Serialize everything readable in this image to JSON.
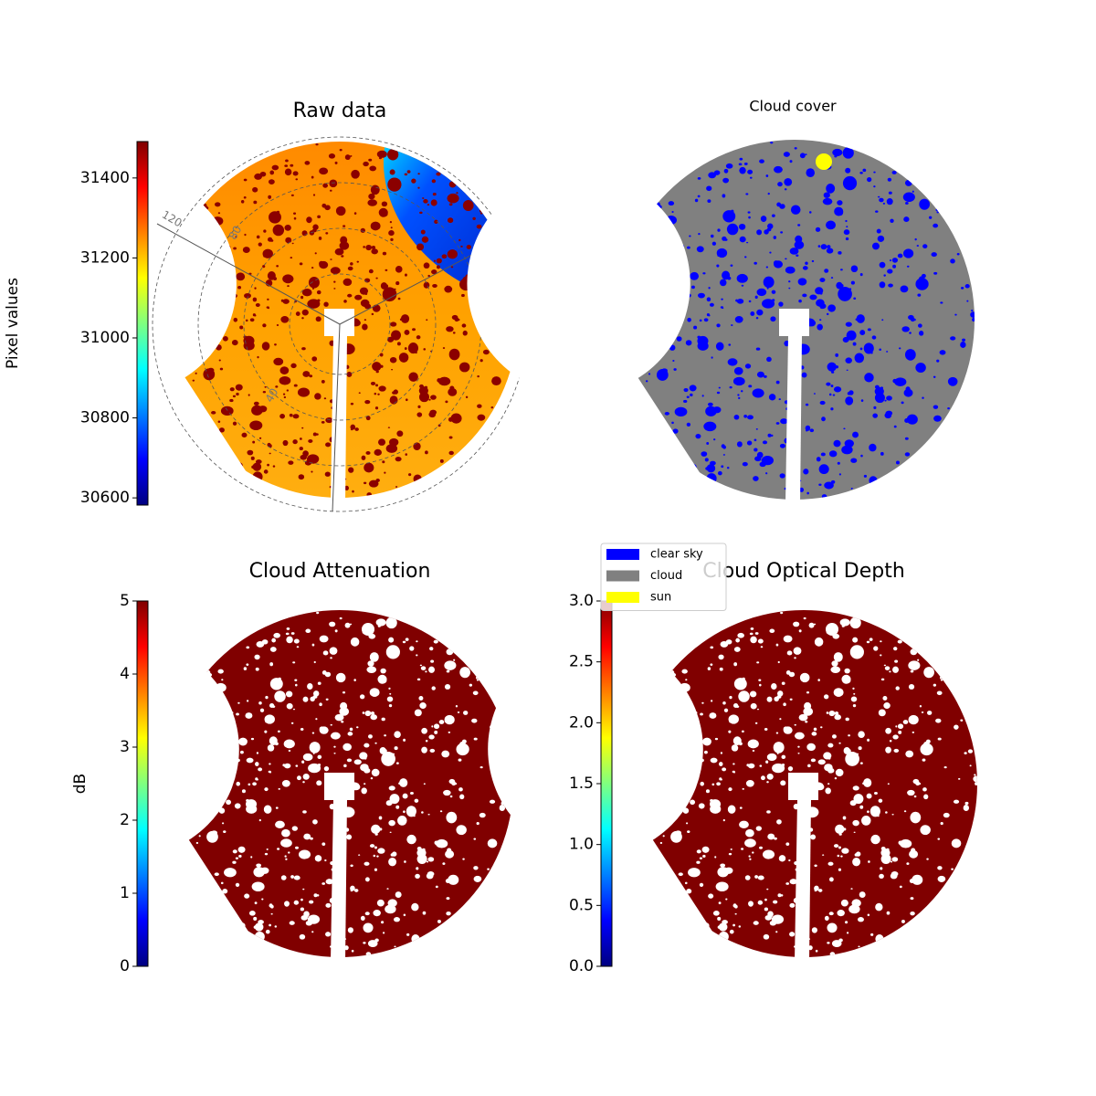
{
  "chart_data": [
    {
      "type": "image",
      "title": "Raw data",
      "colormap": "jet",
      "colorbar_label": "Pixel values",
      "ylim": [
        30582,
        31491
      ],
      "yticks": [
        30600,
        30800,
        31000,
        31200,
        31400
      ],
      "polar_labels": [
        "120",
        "80",
        "40"
      ]
    },
    {
      "type": "classification",
      "title": "Cloud cover",
      "legend": [
        {
          "name": "clear sky",
          "color": "#0000ff"
        },
        {
          "name": "cloud",
          "color": "#808080"
        },
        {
          "name": "sun",
          "color": "#ffff00"
        }
      ]
    },
    {
      "type": "image",
      "title": "Cloud Attenuation",
      "colormap": "jet",
      "colorbar_label": "dB",
      "ylim": [
        0,
        5
      ],
      "yticks": [
        0,
        1,
        2,
        3,
        4,
        5
      ]
    },
    {
      "type": "image",
      "title": "Cloud Optical Depth",
      "colormap": "jet",
      "ylim": [
        0,
        3
      ],
      "yticks": [
        {
          "value": 0,
          "label": "0.0"
        },
        0.5,
        {
          "value": 1,
          "label": "1.0"
        },
        1.5,
        {
          "value": 2,
          "label": "2.0"
        },
        2.5,
        {
          "value": 3,
          "label": "3.0"
        }
      ]
    }
  ]
}
